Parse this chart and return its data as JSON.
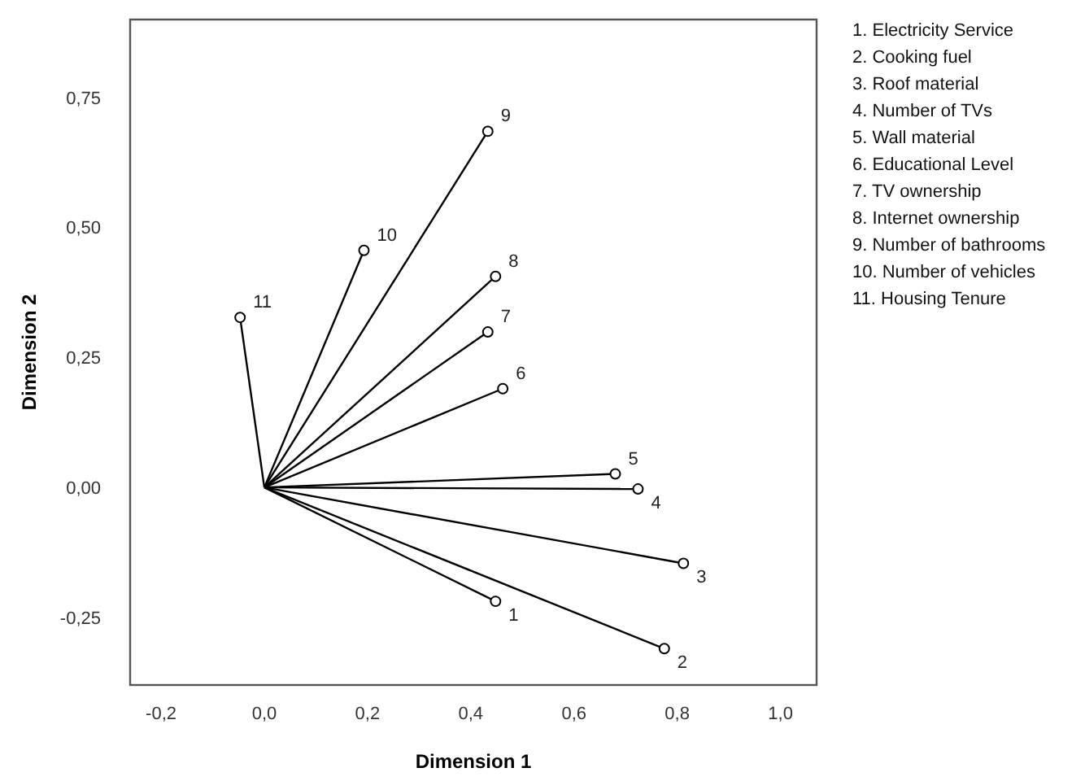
{
  "chart_data": {
    "type": "scatter",
    "xlabel": "Dimension 1",
    "ylabel": "Dimension 2",
    "xlim": [
      -0.26,
      1.07
    ],
    "ylim": [
      -0.38,
      0.9
    ],
    "xticks": [
      {
        "value": -0.2,
        "label": "-0,2"
      },
      {
        "value": 0,
        "label": "0,0"
      },
      {
        "value": 0.2,
        "label": "0,2"
      },
      {
        "value": 0.4,
        "label": "0,4"
      },
      {
        "value": 0.6,
        "label": "0,6"
      },
      {
        "value": 0.8,
        "label": "0,8"
      },
      {
        "value": 1,
        "label": "1,0"
      }
    ],
    "yticks": [
      {
        "value": -0.25,
        "label": "-0,25"
      },
      {
        "value": 0,
        "label": "0,00"
      },
      {
        "value": 0.25,
        "label": "0,25"
      },
      {
        "value": 0.5,
        "label": "0,50"
      },
      {
        "value": 0.75,
        "label": "0,75"
      }
    ],
    "grid": false,
    "series": [
      {
        "type": "line",
        "color": "#000000",
        "x": [
          0,
          0.448
        ],
        "values": [
          0,
          -0.219
        ]
      },
      {
        "type": "line",
        "color": "#000000",
        "x": [
          0,
          0.775
        ],
        "values": [
          0,
          -0.31
        ]
      },
      {
        "type": "line",
        "color": "#000000",
        "x": [
          0,
          0.812
        ],
        "values": [
          0,
          -0.146
        ]
      },
      {
        "type": "line",
        "color": "#000000",
        "x": [
          0,
          0.724
        ],
        "values": [
          0,
          -0.003
        ]
      },
      {
        "type": "line",
        "color": "#000000",
        "x": [
          0,
          0.68
        ],
        "values": [
          0,
          0.026
        ]
      },
      {
        "type": "line",
        "color": "#000000",
        "x": [
          0,
          0.462
        ],
        "values": [
          0,
          0.19
        ]
      },
      {
        "type": "line",
        "color": "#000000",
        "x": [
          0,
          0.433
        ],
        "values": [
          0,
          0.299
        ]
      },
      {
        "type": "line",
        "color": "#000000",
        "x": [
          0,
          0.448
        ],
        "values": [
          0,
          0.406
        ]
      },
      {
        "type": "line",
        "color": "#000000",
        "x": [
          0,
          0.433
        ],
        "values": [
          0,
          0.685
        ]
      },
      {
        "type": "line",
        "color": "#000000",
        "x": [
          0,
          0.193
        ],
        "values": [
          0,
          0.456
        ]
      },
      {
        "type": "line",
        "color": "#000000",
        "x": [
          0,
          -0.047
        ],
        "values": [
          0,
          0.327
        ]
      },
      {
        "marker": "circle",
        "color": "#000000",
        "x": [
          0.448,
          0.775,
          0.812,
          0.724,
          0.68,
          0.462,
          0.433,
          0.448,
          0.433,
          0.193,
          -0.047
        ],
        "values": [
          -0.219,
          -0.31,
          -0.146,
          -0.003,
          0.026,
          0.19,
          0.299,
          0.406,
          0.685,
          0.456,
          0.327
        ]
      }
    ],
    "annotations": [
      {
        "text": "1",
        "x": 0.448,
        "y": -0.219
      },
      {
        "text": "2",
        "x": 0.775,
        "y": -0.31
      },
      {
        "text": "3",
        "x": 0.812,
        "y": -0.146
      },
      {
        "text": "4",
        "x": 0.724,
        "y": -0.003
      },
      {
        "text": "5",
        "x": 0.68,
        "y": 0.026
      },
      {
        "text": "6",
        "x": 0.462,
        "y": 0.19
      },
      {
        "text": "7",
        "x": 0.433,
        "y": 0.299
      },
      {
        "text": "8",
        "x": 0.448,
        "y": 0.406
      },
      {
        "text": "9",
        "x": 0.433,
        "y": 0.685
      },
      {
        "text": "10",
        "x": 0.193,
        "y": 0.456
      },
      {
        "text": "11",
        "x": -0.047,
        "y": 0.327
      },
      "1.  Electricity Service",
      "2.  Cooking fuel",
      "3.  Roof material",
      "4.  Number of TVs",
      "5.  Wall material",
      "6.  Educational Level",
      "7.  TV ownership",
      "8.  Internet ownership",
      "9.  Number of bathrooms",
      "10. Number of vehicles",
      "11. Housing Tenure"
    ]
  }
}
